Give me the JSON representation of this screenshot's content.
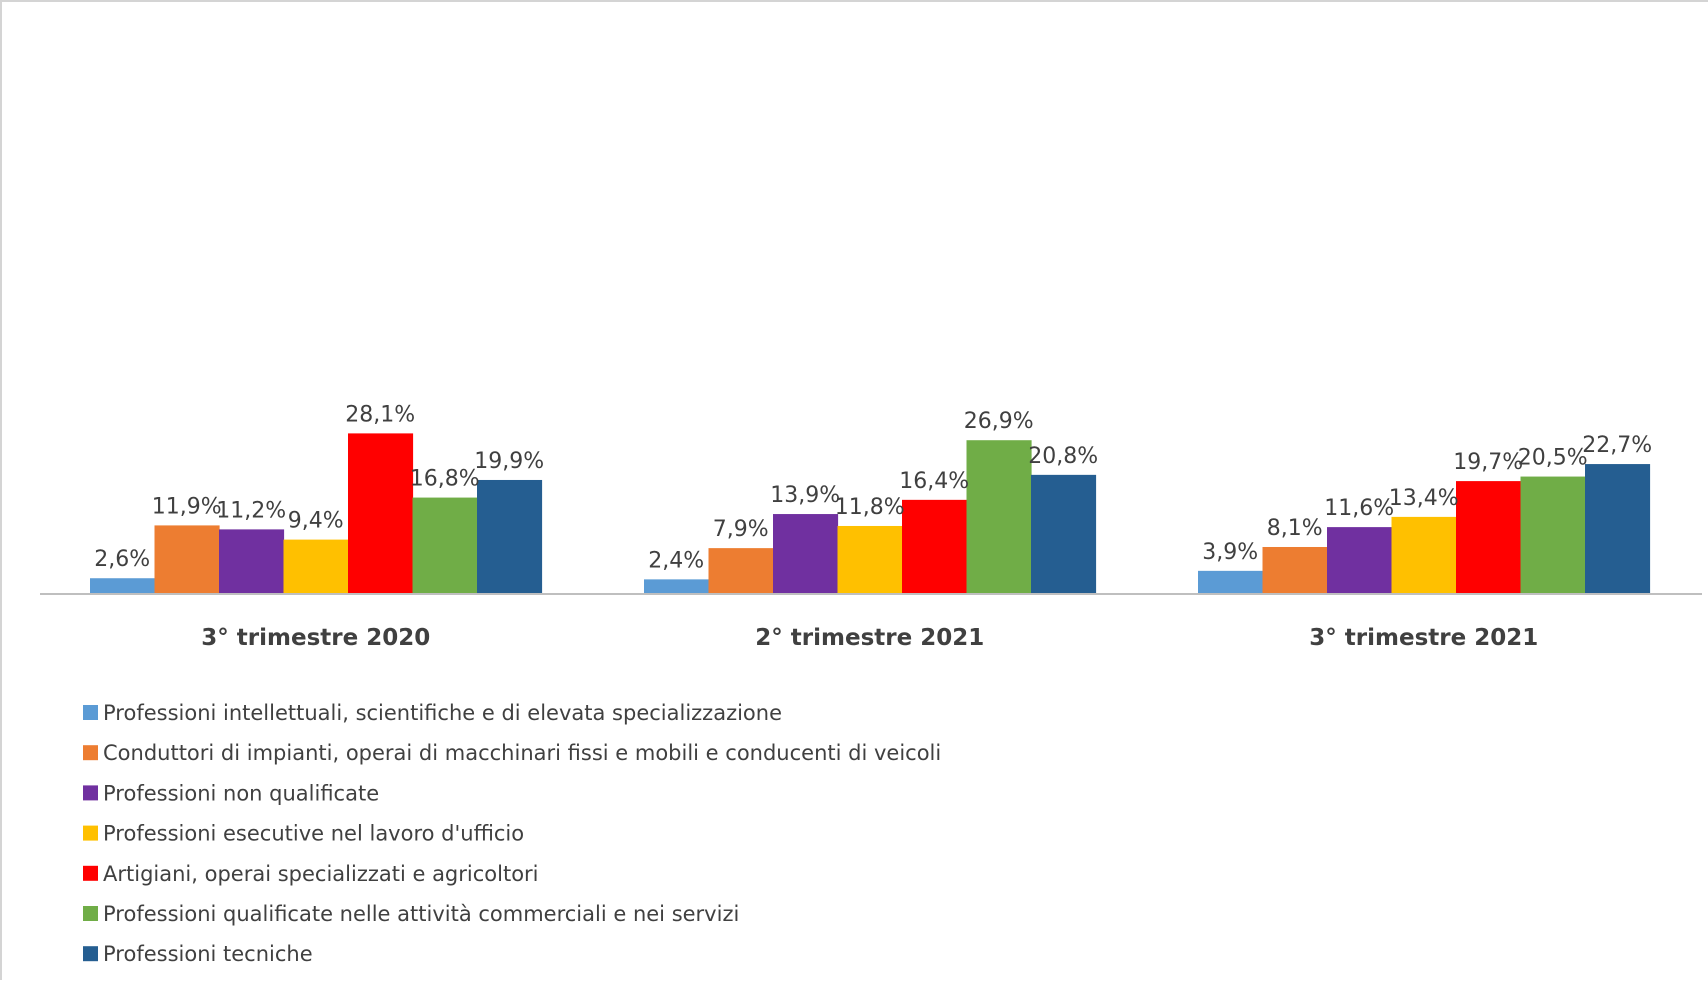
{
  "chart_data": {
    "type": "bar",
    "title": "",
    "xlabel": "",
    "ylabel": "",
    "ylim": [
      0,
      50
    ],
    "grid": false,
    "legend_position": "bottom-left",
    "categories": [
      "3° trimestre 2020",
      "2° trimestre 2021",
      "3° trimestre 2021"
    ],
    "series": [
      {
        "name": "Professioni intellettuali, scientifiche e di elevata specializzazione",
        "color": "#5b9bd5",
        "values": [
          2.6,
          2.4,
          3.9
        ],
        "labels": [
          "2,6%",
          "2,4%",
          "3,9%"
        ]
      },
      {
        "name": "Conduttori di impianti, operai di macchinari fissi e mobili e conducenti di veicoli",
        "color": "#ed7d31",
        "values": [
          11.9,
          7.9,
          8.1
        ],
        "labels": [
          "11,9%",
          "7,9%",
          "8,1%"
        ]
      },
      {
        "name": "Professioni non qualificate",
        "color": "#7030a0",
        "values": [
          11.2,
          13.9,
          11.6
        ],
        "labels": [
          "11,2%",
          "13,9%",
          "11,6%"
        ]
      },
      {
        "name": "Professioni esecutive nel lavoro d'ufficio",
        "color": "#ffc000",
        "values": [
          9.4,
          11.8,
          13.4
        ],
        "labels": [
          "9,4%",
          "11,8%",
          "13,4%"
        ]
      },
      {
        "name": "Artigiani, operai specializzati e agricoltori",
        "color": "#ff0000",
        "values": [
          28.1,
          16.4,
          19.7
        ],
        "labels": [
          "28,1%",
          "16,4%",
          "19,7%"
        ]
      },
      {
        "name": "Professioni qualificate nelle attività commerciali e nei servizi",
        "color": "#70ad47",
        "values": [
          16.8,
          26.9,
          20.5
        ],
        "labels": [
          "16,8%",
          "26,9%",
          "20,5%"
        ]
      },
      {
        "name": "Professioni tecniche",
        "color": "#255e91",
        "values": [
          19.9,
          20.8,
          22.7
        ],
        "labels": [
          "19,9%",
          "20,8%",
          "22,7%"
        ]
      }
    ],
    "axis_color": "#bfbfbf"
  }
}
